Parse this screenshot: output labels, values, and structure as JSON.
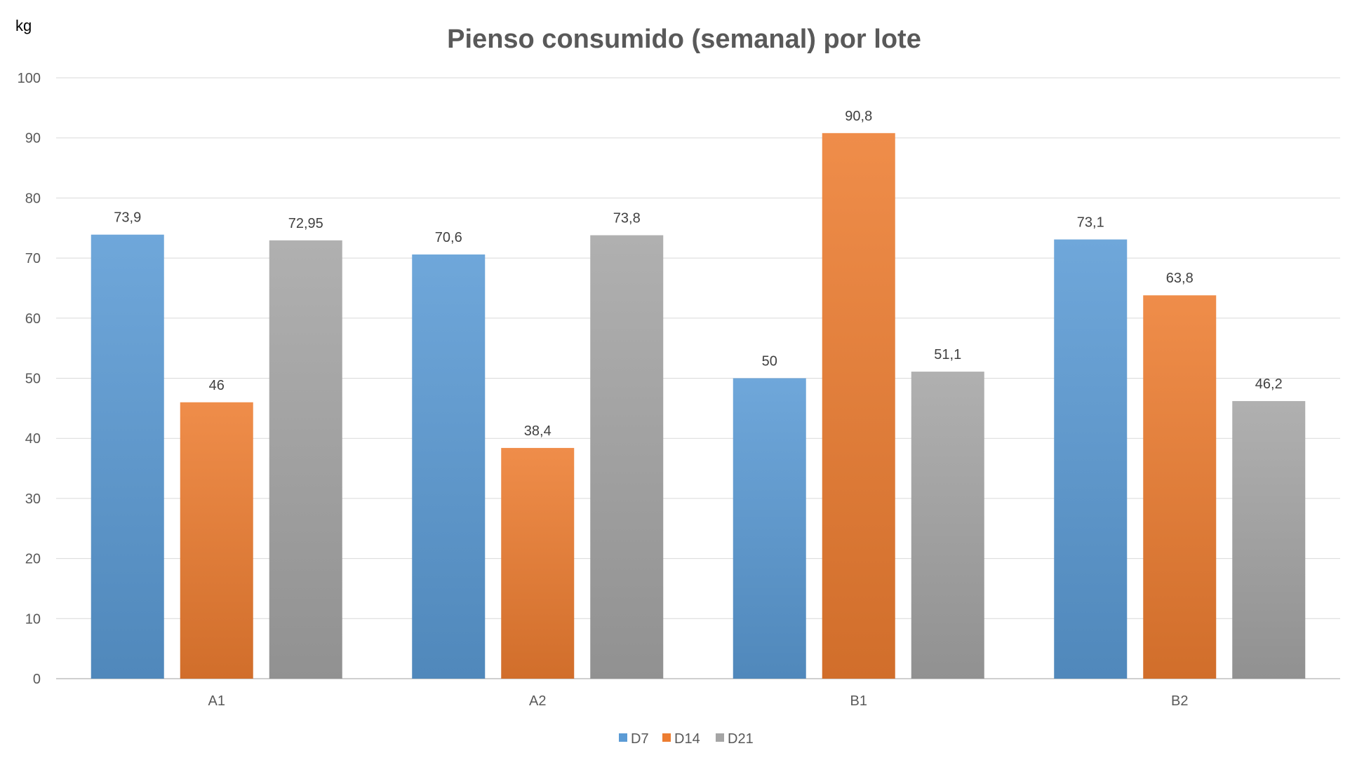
{
  "chart_data": {
    "type": "bar",
    "title": "Pienso consumido (semanal) por lote",
    "ylabel": "kg",
    "xlabel": "",
    "categories": [
      "A1",
      "A2",
      "B1",
      "B2"
    ],
    "series": [
      {
        "name": "D7",
        "color": "#5B9BD5",
        "values": [
          73.9,
          70.6,
          50,
          73.1
        ],
        "labels": [
          "73,9",
          "70,6",
          "50",
          "73,1"
        ]
      },
      {
        "name": "D14",
        "color": "#ED7D31",
        "values": [
          46,
          38.4,
          90.8,
          63.8
        ],
        "labels": [
          "46",
          "38,4",
          "90,8",
          "63,8"
        ]
      },
      {
        "name": "D21",
        "color": "#A5A5A5",
        "values": [
          72.95,
          73.8,
          51.1,
          46.2
        ],
        "labels": [
          "72,95",
          "73,8",
          "51,1",
          "46,2"
        ]
      }
    ],
    "ylim": [
      0,
      100
    ],
    "yticks": [
      0,
      10,
      20,
      30,
      40,
      50,
      60,
      70,
      80,
      90,
      100
    ],
    "grid": true,
    "legend": "bottom"
  }
}
